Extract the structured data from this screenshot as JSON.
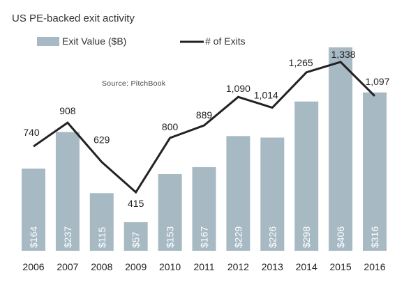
{
  "chart_data": {
    "type": "bar",
    "title": "US PE-backed exit activity",
    "source": "Source: PitchBook",
    "categories": [
      "2006",
      "2007",
      "2008",
      "2009",
      "2010",
      "2011",
      "2012",
      "2013",
      "2014",
      "2015",
      "2016"
    ],
    "series": [
      {
        "name": "Exit Value ($B)",
        "type": "bar",
        "color": "#a7bac4",
        "values": [
          164,
          237,
          115,
          57,
          153,
          167,
          229,
          226,
          298,
          406,
          316
        ],
        "labels": [
          "$164",
          "$237",
          "$115",
          "$57",
          "$153",
          "$167",
          "$229",
          "$226",
          "$298",
          "$406",
          "$316"
        ]
      },
      {
        "name": "# of Exits",
        "type": "line",
        "color": "#222222",
        "values": [
          740,
          908,
          629,
          415,
          800,
          889,
          1090,
          1014,
          1265,
          1338,
          1097
        ],
        "labels": [
          "740",
          "908",
          "629",
          "415",
          "800",
          "889",
          "1,090",
          "1,014",
          "1,265",
          "1,338",
          "1,097"
        ]
      }
    ],
    "legend_position": "top-left",
    "grid": false,
    "bar_axis_range": [
      0,
      406
    ],
    "line_axis_range": [
      0,
      1338
    ]
  }
}
